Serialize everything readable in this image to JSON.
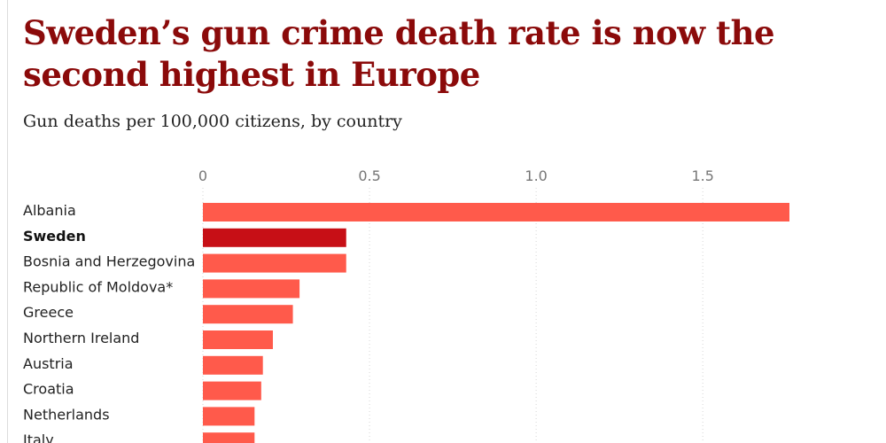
{
  "header": {
    "title": "Sweden’s gun crime death rate is now the second highest in Europe",
    "subtitle": "Gun deaths per 100,000 citizens, by country"
  },
  "colors": {
    "title": "#8b0a0a",
    "bar": "#ff5a4b",
    "bar_highlight": "#c70f16",
    "gridline": "#d6d6d6"
  },
  "chart_data": {
    "type": "bar",
    "orientation": "horizontal",
    "title": "Sweden’s gun crime death rate is now the second highest in Europe",
    "subtitle": "Gun deaths per 100,000 citizens, by country",
    "categories": [
      "Albania",
      "Sweden",
      "Bosnia and Herzegovina",
      "Republic of Moldova*",
      "Greece",
      "Northern Ireland",
      "Austria",
      "Croatia",
      "Netherlands",
      "Italy"
    ],
    "values": [
      1.76,
      0.43,
      0.43,
      0.29,
      0.27,
      0.21,
      0.18,
      0.175,
      0.155,
      0.155
    ],
    "highlight": "Sweden",
    "xlim": [
      0,
      1.76
    ],
    "xticks": [
      0,
      0.5,
      1.0,
      1.5
    ],
    "xtick_labels": [
      "0",
      "0.5",
      "1.0",
      "1.5"
    ],
    "grid": true,
    "axis_position": "top"
  }
}
